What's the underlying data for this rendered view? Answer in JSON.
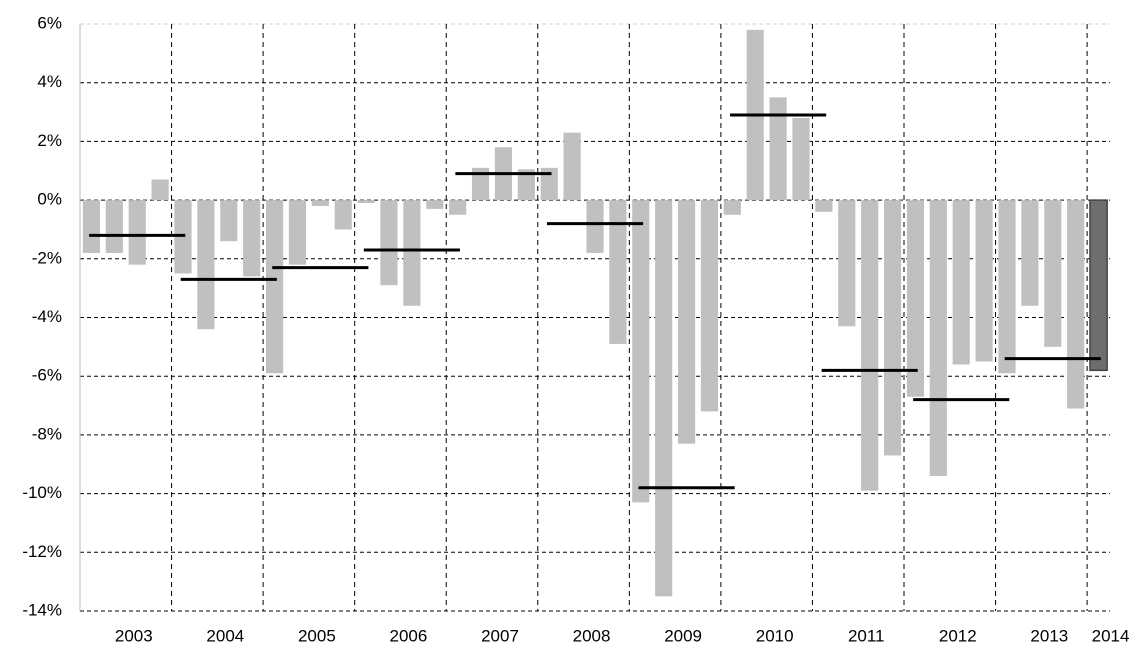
{
  "chart_data": {
    "type": "bar",
    "year_labels": [
      "2003",
      "2004",
      "2005",
      "2006",
      "2007",
      "2008",
      "2009",
      "2010",
      "2011",
      "2012",
      "2013",
      "2014"
    ],
    "values": [
      -1.8,
      -1.8,
      -2.2,
      0.7,
      -2.5,
      -4.4,
      -1.4,
      -2.6,
      -5.9,
      -2.2,
      -0.2,
      -1.0,
      -0.1,
      -2.9,
      -3.6,
      -0.3,
      -0.5,
      1.1,
      1.8,
      1.05,
      1.1,
      2.3,
      -1.8,
      -4.9,
      -10.3,
      -13.5,
      -8.3,
      -7.2,
      -0.5,
      5.8,
      3.5,
      2.8,
      -0.4,
      -4.3,
      -9.9,
      -8.7,
      -6.7,
      -9.4,
      -5.6,
      -5.5,
      -5.9,
      -3.6,
      -5.0,
      -7.1,
      -5.8
    ],
    "annual_average": [
      -1.2,
      -2.7,
      -2.3,
      -1.7,
      0.9,
      -0.8,
      -9.8,
      2.9,
      -5.8,
      -6.8,
      -5.4
    ],
    "color": "#c0c0c0",
    "latest_color": "#6e6e6e",
    "average_color": "#000000",
    "ylim": [
      -14,
      6
    ],
    "yticks": [
      {
        "value": -14,
        "label": "-14%"
      },
      {
        "value": -12,
        "label": "-12%"
      },
      {
        "value": -10,
        "label": "-10%"
      },
      {
        "value": -8,
        "label": "-8%"
      },
      {
        "value": -6,
        "label": "-6%"
      },
      {
        "value": -4,
        "label": "-4%"
      },
      {
        "value": -2,
        "label": "-2%"
      },
      {
        "value": 0,
        "label": "0%"
      },
      {
        "value": 2,
        "label": "2%"
      },
      {
        "value": 4,
        "label": "4%"
      },
      {
        "value": 6,
        "label": "6%"
      }
    ],
    "grid": true
  }
}
